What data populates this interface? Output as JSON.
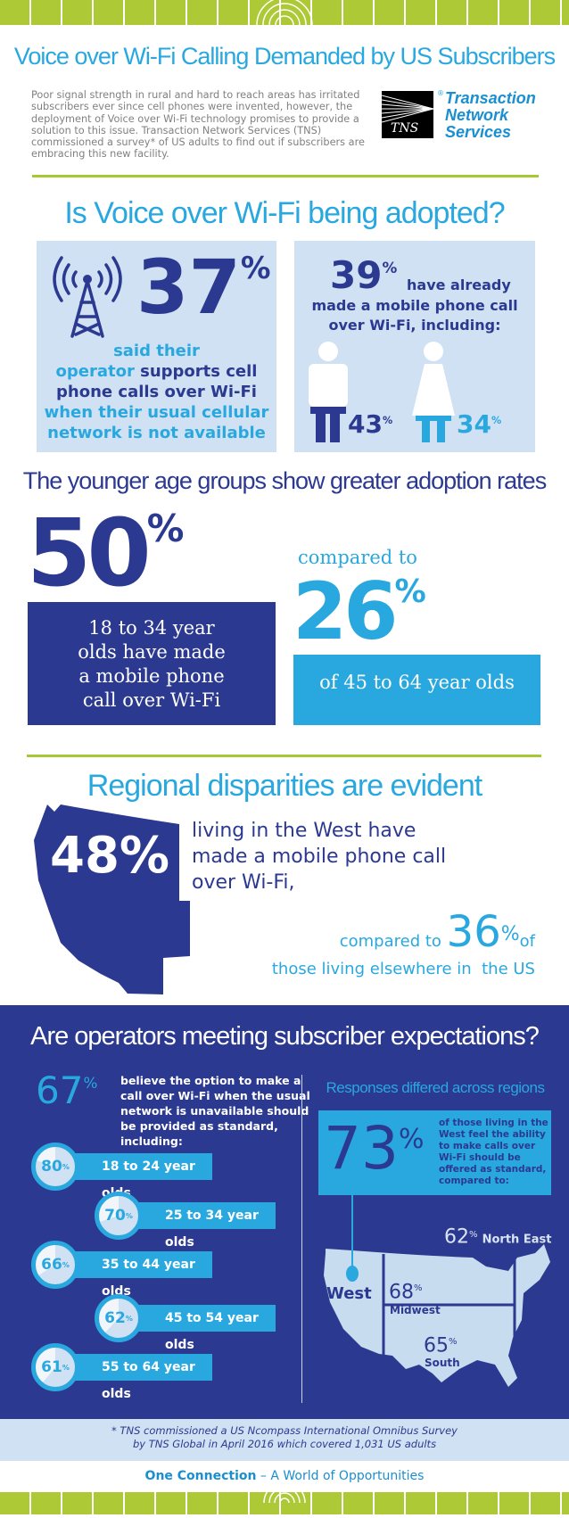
{
  "header": {
    "title": "Voice over Wi-Fi Calling Demanded by US Subscribers",
    "intro": "Poor signal strength in rural and hard to reach areas has irritated subscribers ever since cell phones were invented, however, the deployment of Voice over Wi-Fi technology promises to provide a solution to this issue. Transaction Network Services (TNS) commissioned a survey* of US adults to find out if subscribers are embracing this new facility.",
    "logo_mark": "TNS",
    "logo_line1": "Transaction",
    "logo_line2": "Network",
    "logo_line3": "Services",
    "logo_reg": "®"
  },
  "adoption": {
    "title": "Is Voice over Wi-Fi being adopted?",
    "left": {
      "value": "37",
      "pct": "%",
      "line1": "said their",
      "line2a": "operator",
      "line2b": " supports cell",
      "line3": "phone calls over Wi-Fi",
      "line4": "when their usual cellular",
      "line5": "network is not available"
    },
    "right": {
      "value": "39",
      "pct": "%",
      "line1": "have already",
      "line2": "made a mobile phone call",
      "line3": "over Wi-Fi, including:",
      "male": "43",
      "female": "34",
      "pct2": "%"
    }
  },
  "age": {
    "title": "The younger age groups show greater adoption rates",
    "young_value": "50",
    "pct": "%",
    "young_text": [
      "18 to 34 year",
      "olds have made",
      "a mobile phone",
      "call over Wi-Fi"
    ],
    "compared": "compared to",
    "older_value": "26",
    "older_text": "of 45 to 64 year olds"
  },
  "regional": {
    "title": "Regional disparities are evident",
    "west_value": "48%",
    "west_text": [
      "living in the West have",
      "made a mobile phone call",
      "over Wi-Fi,"
    ],
    "compared": "compared to ",
    "other_value": "36",
    "pct": "%",
    "of": "of",
    "elsewhere": "those living elsewhere in  the US"
  },
  "operators": {
    "title": "Are operators meeting subscriber expectations?",
    "standard_value": "67",
    "pct": "%",
    "standard_text": [
      "believe the option to make a",
      "call over Wi-Fi when the usual",
      "network is unavailable should",
      "be provided as standard,",
      "including:"
    ],
    "age_groups": [
      {
        "value": 80,
        "label": "18 to 24 year olds"
      },
      {
        "value": 70,
        "label": "25 to 34 year olds"
      },
      {
        "value": 66,
        "label": "35 to 44 year olds"
      },
      {
        "value": 62,
        "label": "45 to 54 year olds"
      },
      {
        "value": 61,
        "label": "55 to 64 year olds"
      }
    ],
    "regions_title": "Responses differed across regions",
    "west_value": "73",
    "west_text": [
      "of those living in the",
      "West feel the ability",
      "to make calls over",
      "Wi-Fi should be",
      "offered as standard,",
      "compared to:"
    ],
    "map": {
      "west": "West",
      "midwest_value": "68",
      "midwest": "Midwest",
      "south_value": "65",
      "south": "South",
      "northeast_value": "62",
      "northeast": "North East"
    }
  },
  "footer": {
    "note1": "* TNS commissioned a US Ncompass International Omnibus Survey",
    "note2": "by TNS Global in April 2016 which covered 1,031 US adults",
    "tagline_a": "One Connection",
    "tagline_b": " – A World of Opportunities"
  },
  "colors": {
    "light_blue": "#29a8e0",
    "navy": "#2b3990",
    "green": "#a6c833",
    "pale": "#cfe1f3"
  }
}
